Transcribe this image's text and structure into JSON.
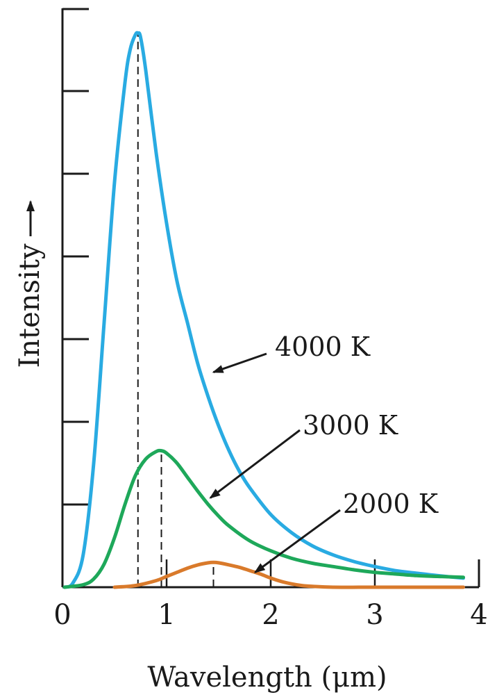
{
  "chart_data": {
    "type": "line",
    "xlabel": "Wavelength (μm)",
    "ylabel": "Intensity",
    "xlim": [
      0,
      4
    ],
    "ylim": [
      0,
      7
    ],
    "x_ticks": [
      "0",
      "1",
      "2",
      "3",
      "4"
    ],
    "x_tick_values": [
      0,
      1,
      2,
      3,
      4
    ],
    "y_ticks_unlabeled": [
      1,
      2,
      3,
      4,
      5,
      6
    ],
    "series": [
      {
        "name": "4000 K",
        "color": "#29abe2",
        "temperature_K": 4000,
        "peak_wavelength": 0.725,
        "peak_intensity": 6.7,
        "x": [
          0.02,
          0.1,
          0.2,
          0.3,
          0.4,
          0.5,
          0.6,
          0.65,
          0.7,
          0.725,
          0.75,
          0.8,
          0.9,
          1.0,
          1.1,
          1.2,
          1.3,
          1.4,
          1.5,
          1.6,
          1.7,
          1.8,
          2.0,
          2.2,
          2.4,
          2.6,
          2.8,
          3.0,
          3.2,
          3.4,
          3.6,
          3.85
        ],
        "y": [
          0.0,
          0.05,
          0.4,
          1.5,
          3.2,
          4.9,
          6.1,
          6.5,
          6.68,
          6.7,
          6.65,
          6.25,
          5.25,
          4.4,
          3.7,
          3.2,
          2.7,
          2.3,
          1.95,
          1.65,
          1.4,
          1.2,
          0.88,
          0.66,
          0.5,
          0.39,
          0.31,
          0.25,
          0.2,
          0.17,
          0.14,
          0.11
        ]
      },
      {
        "name": "3000 K",
        "color": "#1ea85a",
        "temperature_K": 3000,
        "peak_wavelength": 0.95,
        "peak_intensity": 1.65,
        "x": [
          0.02,
          0.2,
          0.3,
          0.4,
          0.5,
          0.6,
          0.7,
          0.8,
          0.9,
          0.95,
          1.0,
          1.1,
          1.2,
          1.3,
          1.4,
          1.5,
          1.6,
          1.8,
          2.0,
          2.2,
          2.4,
          2.6,
          2.8,
          3.0,
          3.2,
          3.4,
          3.6,
          3.85
        ],
        "y": [
          0.0,
          0.03,
          0.1,
          0.28,
          0.6,
          1.0,
          1.35,
          1.55,
          1.64,
          1.65,
          1.62,
          1.5,
          1.33,
          1.16,
          1.0,
          0.86,
          0.74,
          0.56,
          0.44,
          0.35,
          0.29,
          0.25,
          0.21,
          0.18,
          0.16,
          0.14,
          0.13,
          0.12
        ]
      },
      {
        "name": "2000 K",
        "color": "#d97a2b",
        "temperature_K": 2000,
        "peak_wavelength": 1.45,
        "peak_intensity": 0.3,
        "x": [
          0.5,
          0.7,
          0.9,
          1.0,
          1.1,
          1.2,
          1.3,
          1.4,
          1.45,
          1.5,
          1.6,
          1.7,
          1.8,
          1.9,
          2.0,
          2.1,
          2.2,
          2.3,
          2.4,
          2.6,
          3.0,
          3.5,
          3.85
        ],
        "y": [
          0.0,
          0.02,
          0.08,
          0.13,
          0.18,
          0.23,
          0.27,
          0.295,
          0.3,
          0.295,
          0.27,
          0.24,
          0.2,
          0.16,
          0.11,
          0.07,
          0.04,
          0.02,
          0.01,
          0.0,
          0.0,
          0.0,
          0.0
        ]
      }
    ],
    "annotations": [
      {
        "text": "4000 K",
        "series": "4000 K",
        "points_to": [
          1.45,
          2.6
        ]
      },
      {
        "text": "3000 K",
        "series": "3000 K",
        "points_to": [
          1.42,
          1.08
        ]
      },
      {
        "text": "2000 K",
        "series": "2000 K",
        "points_to": [
          1.85,
          0.18
        ]
      }
    ],
    "grid": false,
    "legend": "none"
  }
}
